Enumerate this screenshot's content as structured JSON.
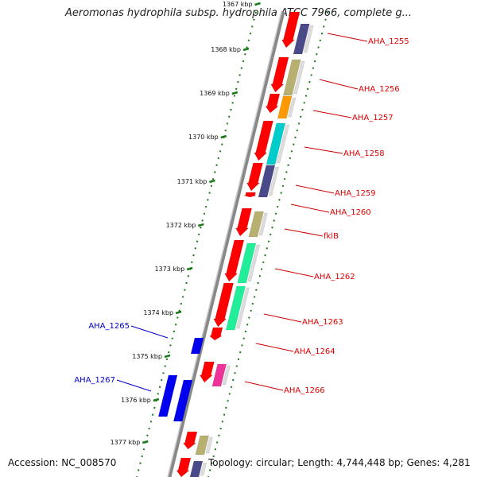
{
  "header": {
    "title": "Aeromonas hydrophila subsp. hydrophila ATCC 7966, complete g..."
  },
  "footer": {
    "accession": "Accession: NC_008570",
    "topology": "Topology: circular; Length: 4,744,448 bp; Genes: 4,281"
  },
  "ruler": {
    "ticks": [
      {
        "label": "1367 kbp"
      },
      {
        "label": "1368 kbp"
      },
      {
        "label": "1369 kbp"
      },
      {
        "label": "1370 kbp"
      },
      {
        "label": "1371 kbp"
      },
      {
        "label": "1372 kbp"
      },
      {
        "label": "1373 kbp"
      },
      {
        "label": "1374 kbp"
      },
      {
        "label": "1375 kbp"
      },
      {
        "label": "1376 kbp"
      },
      {
        "label": "1377 kbp"
      }
    ]
  },
  "genes_forward": [
    {
      "label": "AHA_1255",
      "color": "#dd0000"
    },
    {
      "label": "AHA_1256",
      "color": "#dd0000"
    },
    {
      "label": "AHA_1257",
      "color": "#dd0000"
    },
    {
      "label": "AHA_1258",
      "color": "#dd0000"
    },
    {
      "label": "AHA_1259",
      "color": "#dd0000"
    },
    {
      "label": "AHA_1260",
      "color": "#dd0000"
    },
    {
      "label": "fklB",
      "color": "#dd0000"
    },
    {
      "label": "AHA_1262",
      "color": "#dd0000"
    },
    {
      "label": "AHA_1263",
      "color": "#dd0000"
    },
    {
      "label": "AHA_1264",
      "color": "#dd0000"
    },
    {
      "label": "AHA_1266",
      "color": "#dd0000"
    }
  ],
  "genes_reverse": [
    {
      "label": "AHA_1265",
      "color": "#0000cc"
    },
    {
      "label": "AHA_1267",
      "color": "#0000cc"
    }
  ],
  "colors": {
    "forward_cds": "#ff0000",
    "reverse_cds": "#0000ee",
    "backbone": "#888888",
    "gc_ticks": "#1a7a1a",
    "cog_olive": "#b8b070",
    "cog_slate": "#4a4a8a",
    "cog_orange": "#ff9900",
    "cog_cyan": "#00cccc",
    "cog_green": "#22ee99",
    "cog_magenta": "#ee3399"
  }
}
